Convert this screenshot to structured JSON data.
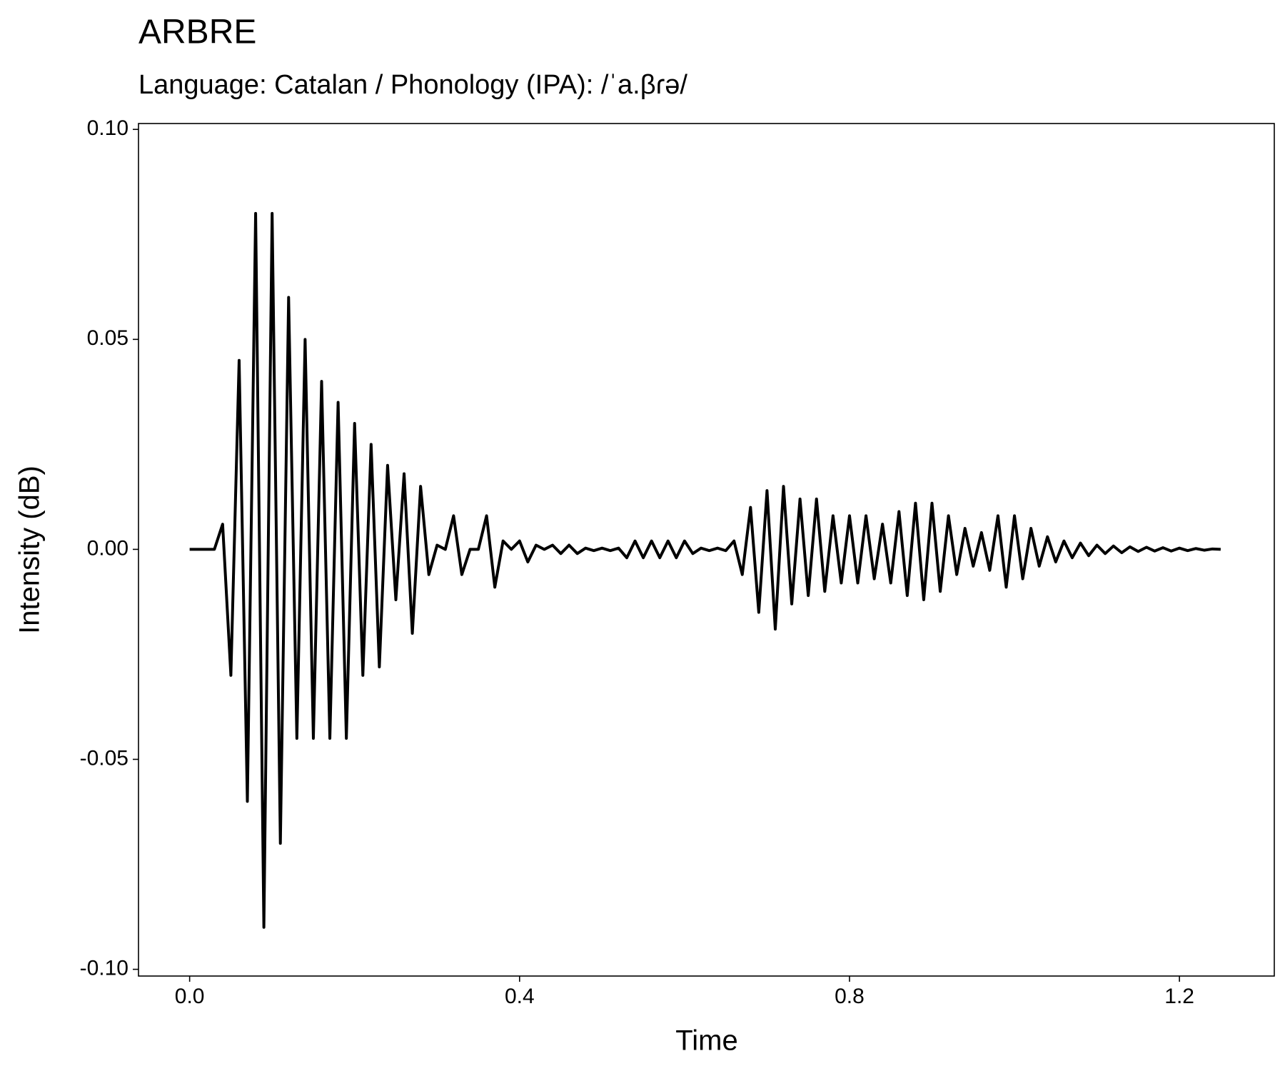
{
  "chart_data": {
    "type": "line",
    "title": "ARBRE",
    "subtitle": "Language: Catalan / Phonology (IPA): /ˈa.βɾə/",
    "x_label": "Time",
    "y_label": "Intensity (dB)",
    "color": "#000000",
    "grid": false,
    "xlim": [
      -0.062,
      1.315
    ],
    "ylim": [
      -0.1016,
      0.1014
    ],
    "xticks": [
      {
        "value": 0,
        "label": "0.0"
      },
      0.4,
      0.8,
      1.2
    ],
    "yticks": [
      {
        "value": 0.1,
        "label": "0.10"
      },
      0.05,
      {
        "value": 0,
        "label": "0.00"
      },
      -0.05,
      {
        "value": -0.1,
        "label": "-0.10"
      }
    ],
    "x": [
      0,
      0.01,
      0.02,
      0.03,
      0.04,
      0.05,
      0.06,
      0.07,
      0.08,
      0.09,
      0.1,
      0.11,
      0.12,
      0.13,
      0.14,
      0.15,
      0.16,
      0.17,
      0.18,
      0.19,
      0.2,
      0.21,
      0.22,
      0.23,
      0.24,
      0.25,
      0.26,
      0.27,
      0.28,
      0.29,
      0.3,
      0.31,
      0.32,
      0.33,
      0.34,
      0.35,
      0.36,
      0.37,
      0.38,
      0.39,
      0.4,
      0.41,
      0.42,
      0.43,
      0.44,
      0.45,
      0.46,
      0.47,
      0.48,
      0.49,
      0.5,
      0.51,
      0.52,
      0.53,
      0.54,
      0.55,
      0.56,
      0.57,
      0.58,
      0.59,
      0.6,
      0.61,
      0.62,
      0.63,
      0.64,
      0.65,
      0.66,
      0.67,
      0.68,
      0.69,
      0.7,
      0.71,
      0.72,
      0.73,
      0.74,
      0.75,
      0.76,
      0.77,
      0.78,
      0.79,
      0.8,
      0.81,
      0.82,
      0.83,
      0.84,
      0.85,
      0.86,
      0.87,
      0.88,
      0.89,
      0.9,
      0.91,
      0.92,
      0.93,
      0.94,
      0.95,
      0.96,
      0.97,
      0.98,
      0.99,
      1,
      1.01,
      1.02,
      1.03,
      1.04,
      1.05,
      1.06,
      1.07,
      1.08,
      1.09,
      1.1,
      1.11,
      1.12,
      1.13,
      1.14,
      1.15,
      1.16,
      1.17,
      1.18,
      1.19,
      1.2,
      1.21,
      1.22,
      1.23,
      1.24,
      1.25
    ],
    "values": [
      0,
      0,
      0,
      0,
      0.006,
      -0.03,
      0.045,
      -0.06,
      0.08,
      -0.09,
      0.08,
      -0.07,
      0.06,
      -0.045,
      0.05,
      -0.045,
      0.04,
      -0.045,
      0.035,
      -0.045,
      0.03,
      -0.03,
      0.025,
      -0.028,
      0.02,
      -0.012,
      0.018,
      -0.02,
      0.015,
      -0.006,
      0.001,
      0,
      0.008,
      -0.006,
      0,
      0,
      0.008,
      -0.009,
      0.002,
      0,
      0.002,
      -0.003,
      0.001,
      0,
      0.001,
      -0.001,
      0.001,
      -0.001,
      0.0003,
      -0.0003,
      0.0003,
      -0.0003,
      0.0003,
      -0.002,
      0.002,
      -0.002,
      0.002,
      -0.002,
      0.002,
      -0.002,
      0.002,
      -0.001,
      0.0003,
      -0.0003,
      0.0003,
      -0.0003,
      0.002,
      -0.006,
      0.01,
      -0.015,
      0.014,
      -0.019,
      0.015,
      -0.013,
      0.012,
      -0.011,
      0.012,
      -0.01,
      0.008,
      -0.008,
      0.008,
      -0.008,
      0.008,
      -0.007,
      0.006,
      -0.008,
      0.009,
      -0.011,
      0.011,
      -0.012,
      0.011,
      -0.01,
      0.008,
      -0.006,
      0.005,
      -0.004,
      0.004,
      -0.005,
      0.008,
      -0.009,
      0.008,
      -0.007,
      0.005,
      -0.004,
      0.003,
      -0.003,
      0.002,
      -0.002,
      0.0015,
      -0.0015,
      0.001,
      -0.001,
      0.0008,
      -0.0008,
      0.0006,
      -0.0005,
      0.0005,
      -0.0004,
      0.0004,
      -0.0004,
      0.0003,
      -0.0003,
      0.0002,
      -0.0002,
      0.0001,
      0
    ]
  }
}
